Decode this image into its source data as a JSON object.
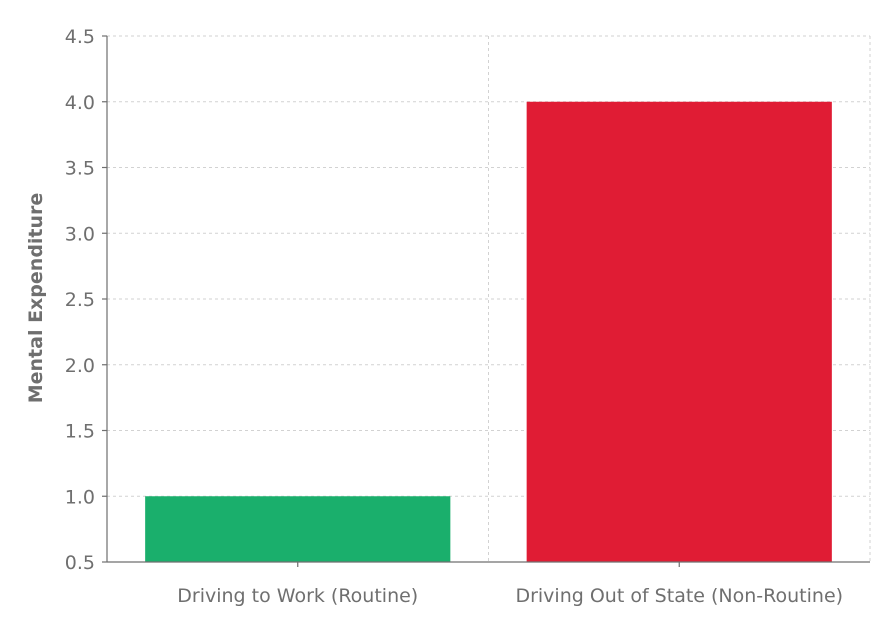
{
  "chart_data": {
    "type": "bar",
    "categories": [
      "Driving to Work (Routine)",
      "Driving Out of State (Non-Routine)"
    ],
    "values": [
      1.0,
      4.0
    ],
    "colors": [
      "#1aaf6c",
      "#e01c34"
    ],
    "title": "",
    "xlabel": "",
    "ylabel": "Mental Expenditure",
    "ylim": [
      0.5,
      4.5
    ],
    "yticks": [
      "0.5",
      "1.0",
      "1.5",
      "2.0",
      "2.5",
      "3.0",
      "3.5",
      "4.0",
      "4.5"
    ],
    "grid": true,
    "legend": "none"
  }
}
